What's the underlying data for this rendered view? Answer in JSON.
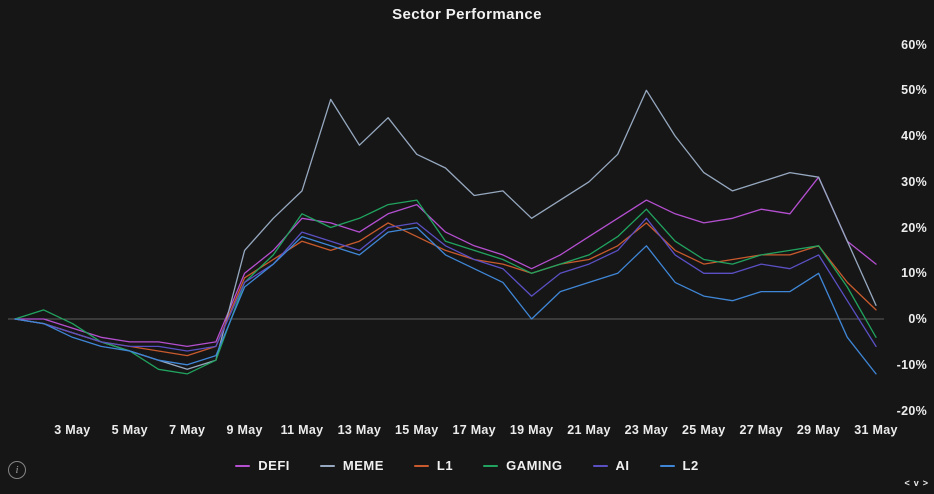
{
  "header": {
    "title": "Sector Performance"
  },
  "chart_data": {
    "type": "line",
    "title": "Sector Performance",
    "x_unit": "date (May)",
    "x_days": [
      1,
      2,
      3,
      4,
      5,
      6,
      7,
      8,
      9,
      10,
      11,
      12,
      13,
      14,
      15,
      16,
      17,
      18,
      19,
      20,
      21,
      22,
      23,
      24,
      25,
      26,
      27,
      28,
      29,
      30,
      31
    ],
    "x_tick_labels": [
      {
        "day": 3,
        "label": "3 May"
      },
      {
        "day": 5,
        "label": "5 May"
      },
      {
        "day": 7,
        "label": "7 May"
      },
      {
        "day": 9,
        "label": "9 May"
      },
      {
        "day": 11,
        "label": "11 May"
      },
      {
        "day": 13,
        "label": "13 May"
      },
      {
        "day": 15,
        "label": "15 May"
      },
      {
        "day": 17,
        "label": "17 May"
      },
      {
        "day": 19,
        "label": "19 May"
      },
      {
        "day": 21,
        "label": "21 May"
      },
      {
        "day": 23,
        "label": "23 May"
      },
      {
        "day": 25,
        "label": "25 May"
      },
      {
        "day": 27,
        "label": "27 May"
      },
      {
        "day": 29,
        "label": "29 May"
      },
      {
        "day": 31,
        "label": "31 May"
      }
    ],
    "ylabel": "percent change",
    "ylim": [
      -20,
      60
    ],
    "y_tick_step": 10,
    "grid": "zero-line-only",
    "legend_position": "bottom-center",
    "series": [
      {
        "name": "DEFI",
        "color": "#b44fd0",
        "values": [
          0,
          0,
          -2,
          -4,
          -5,
          -5,
          -6,
          -5,
          10,
          15,
          22,
          21,
          19,
          23,
          25,
          19,
          16,
          14,
          11,
          14,
          18,
          22,
          26,
          23,
          21,
          22,
          24,
          23,
          31,
          17,
          12
        ]
      },
      {
        "name": "MEME",
        "color": "#96a8bf",
        "values": [
          0,
          -1,
          -3,
          -5,
          -7,
          -9,
          -11,
          -9,
          15,
          22,
          28,
          48,
          38,
          44,
          36,
          33,
          27,
          28,
          22,
          26,
          30,
          36,
          50,
          40,
          32,
          28,
          30,
          32,
          31,
          17,
          3
        ]
      },
      {
        "name": "L1",
        "color": "#c85a2d",
        "values": [
          0,
          -1,
          -3,
          -5,
          -6,
          -7,
          -8,
          -6,
          9,
          13,
          17,
          15,
          17,
          21,
          18,
          15,
          13,
          12,
          10,
          12,
          13,
          16,
          21,
          15,
          12,
          13,
          14,
          14,
          16,
          8,
          2
        ]
      },
      {
        "name": "GAMING",
        "color": "#21a35f",
        "values": [
          0,
          2,
          -1,
          -5,
          -7,
          -11,
          -12,
          -9,
          8,
          14,
          23,
          20,
          22,
          25,
          26,
          17,
          15,
          13,
          10,
          12,
          14,
          18,
          24,
          17,
          13,
          12,
          14,
          15,
          16,
          7,
          -4
        ]
      },
      {
        "name": "AI",
        "color": "#5a50c4",
        "values": [
          0,
          -1,
          -3,
          -5,
          -6,
          -6,
          -7,
          -6,
          8,
          12,
          19,
          17,
          15,
          20,
          21,
          16,
          13,
          11,
          5,
          10,
          12,
          15,
          22,
          14,
          10,
          10,
          12,
          11,
          14,
          4,
          -6
        ]
      },
      {
        "name": "L2",
        "color": "#3f86d6",
        "values": [
          0,
          -1,
          -4,
          -6,
          -7,
          -9,
          -10,
          -8,
          7,
          12,
          18,
          16,
          14,
          19,
          20,
          14,
          11,
          8,
          0,
          6,
          8,
          10,
          16,
          8,
          5,
          4,
          6,
          6,
          10,
          -4,
          -12
        ]
      }
    ]
  },
  "y_axis": {
    "ticks": [
      {
        "value": 60,
        "label": "60%"
      },
      {
        "value": 50,
        "label": "50%"
      },
      {
        "value": 40,
        "label": "40%"
      },
      {
        "value": 30,
        "label": "30%"
      },
      {
        "value": 20,
        "label": "20%"
      },
      {
        "value": 10,
        "label": "10%"
      },
      {
        "value": 0,
        "label": "0%"
      },
      {
        "value": -10,
        "label": "-10%"
      },
      {
        "value": -20,
        "label": "-20%"
      }
    ]
  },
  "footer": {
    "info_glyph": "i",
    "pager": {
      "prev": "<",
      "collapse": "v",
      "next": ">"
    }
  },
  "colors": {
    "background": "#161616",
    "zero_line": "#9a9a9a",
    "text": "#ececec"
  }
}
